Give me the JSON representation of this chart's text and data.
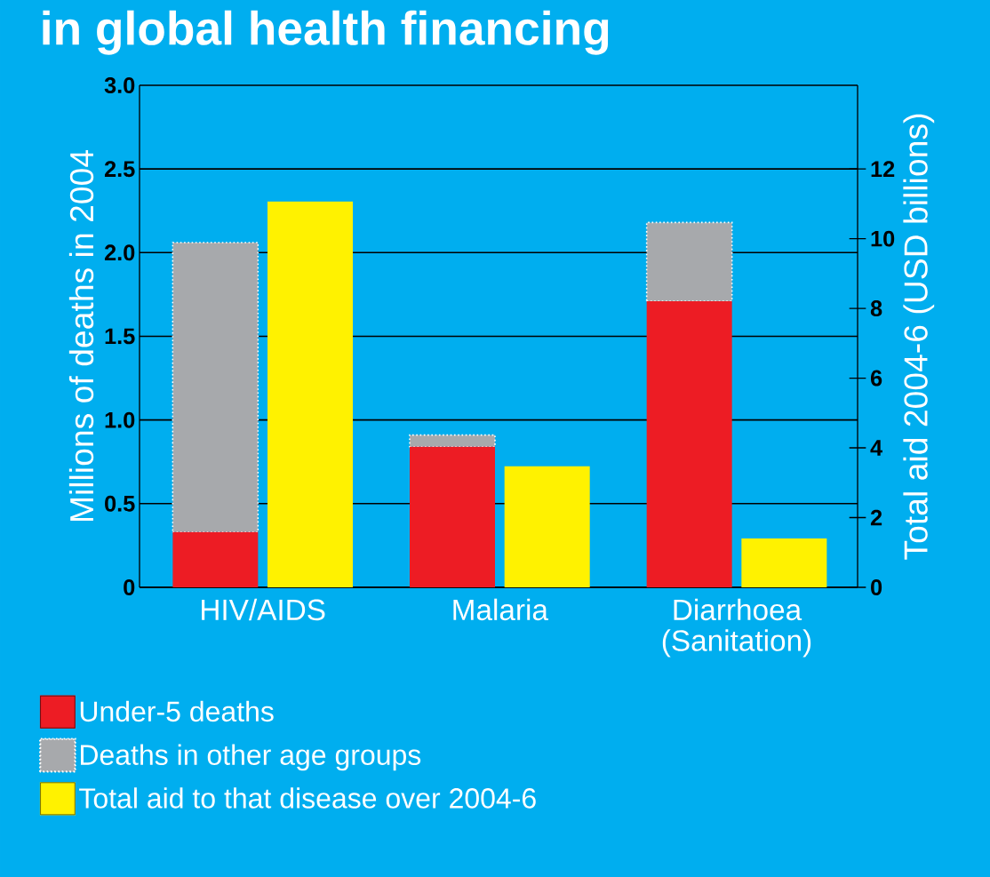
{
  "chart_data": {
    "type": "bar",
    "title": "in global health financing",
    "categories": [
      "HIV/AIDS",
      "Malaria",
      "Diarrhoea (Sanitation)"
    ],
    "ylabel": "Millions of deaths in 2004",
    "y2label": "Total aid 2004-6 (USD billions)",
    "ylim": [
      0,
      3.0
    ],
    "yticks": [
      0,
      0.5,
      {
        "value": 1,
        "label": "1.0"
      },
      1.5,
      {
        "value": 2,
        "label": "2.0"
      },
      2.5,
      {
        "value": 3,
        "label": "3.0"
      }
    ],
    "y2lim": [
      0,
      14.4
    ],
    "y2ticks": [
      0,
      2,
      4,
      6,
      8,
      10,
      12
    ],
    "stacked": true,
    "grid": "y",
    "legend": "bottom left",
    "series": [
      {
        "name": "Under-5 deaths",
        "color": "#ed1c24",
        "values": [
          0.33,
          0.84,
          1.71
        ]
      },
      {
        "name": "Deaths in other age groups",
        "color": "#a7a9ac",
        "values": [
          1.73,
          0.07,
          0.47
        ]
      },
      {
        "name": "Total aid to that disease over 2004-6",
        "color": "#fff200",
        "values": [
          11.07,
          3.47,
          1.4
        ],
        "axis": "y2"
      }
    ]
  }
}
